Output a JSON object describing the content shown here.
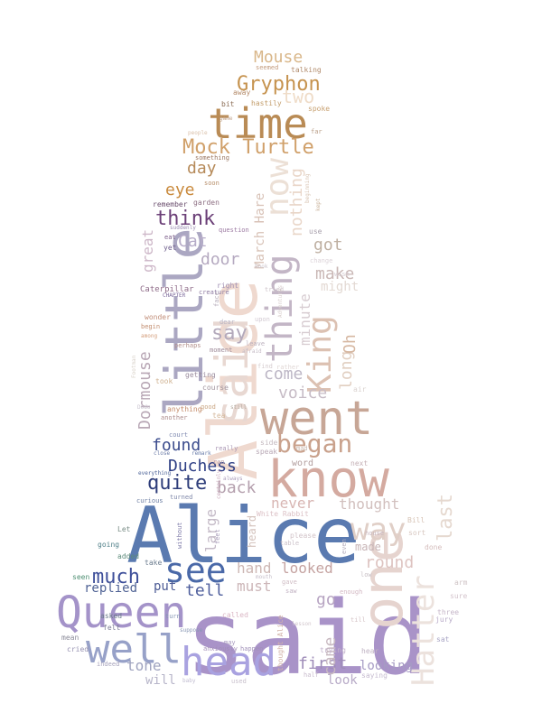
{
  "wordcloud": {
    "words": [
      {
        "text": "said",
        "color": "#a993c8"
      },
      {
        "text": "Alice",
        "color": "#5a7ab0"
      },
      {
        "text": "Alice",
        "color": "#efd9cf"
      },
      {
        "text": "little",
        "color": "#aba7c2"
      },
      {
        "text": "said",
        "color": "#e8d8d2"
      },
      {
        "text": "know",
        "color": "#d4aaa0"
      },
      {
        "text": "one",
        "color": "#e6d4cf"
      },
      {
        "text": "went",
        "color": "#c7a696"
      },
      {
        "text": "time",
        "color": "#b98b55"
      },
      {
        "text": "Queen",
        "color": "#a493c9"
      },
      {
        "text": "head",
        "color": "#a9a2e0"
      },
      {
        "text": "well",
        "color": "#97a1c8"
      },
      {
        "text": "see",
        "color": "#4a69a8"
      },
      {
        "text": "thing",
        "color": "#c3b6c6"
      },
      {
        "text": "King",
        "color": "#dcc1b2"
      },
      {
        "text": "now",
        "color": "#ece0d6"
      },
      {
        "text": "Hatter",
        "color": "#ece2dd"
      },
      {
        "text": "way",
        "color": "#e0cfc7"
      },
      {
        "text": "began",
        "color": "#c9a18c"
      },
      {
        "text": "Mock Turtle",
        "color": "#d0a06a"
      },
      {
        "text": "Gryphon",
        "color": "#c6934f"
      },
      {
        "text": "Mouse",
        "color": "#d9b78a"
      },
      {
        "text": "two",
        "color": "#efdcc8"
      },
      {
        "text": "think",
        "color": "#6b3f77"
      },
      {
        "text": "day",
        "color": "#b68a59"
      },
      {
        "text": "eye",
        "color": "#c98a3d"
      },
      {
        "text": "much",
        "color": "#3e4f9a"
      },
      {
        "text": "quite",
        "color": "#2e3d7a"
      },
      {
        "text": "found",
        "color": "#3b4c8d"
      },
      {
        "text": "Duchess",
        "color": "#2d3e84"
      },
      {
        "text": "Dormouse",
        "color": "#b9a8b6"
      },
      {
        "text": "back",
        "color": "#b5a0ae"
      },
      {
        "text": "voice",
        "color": "#c7bcc6"
      },
      {
        "text": "come",
        "color": "#bdb7c6"
      },
      {
        "text": "say",
        "color": "#b3a9bb"
      },
      {
        "text": "door",
        "color": "#b5a9c0"
      },
      {
        "text": "Cat",
        "color": "#b6acc8"
      },
      {
        "text": "great",
        "color": "#cdb7c8"
      },
      {
        "text": "nothing",
        "color": "#e9d6c8"
      },
      {
        "text": "March Hare",
        "color": "#d8c2b7"
      },
      {
        "text": "got",
        "color": "#bfb0a2"
      },
      {
        "text": "make",
        "color": "#c9b7b5"
      },
      {
        "text": "might",
        "color": "#e3d9d3"
      },
      {
        "text": "minute",
        "color": "#d8cdd2"
      },
      {
        "text": "long",
        "color": "#e1cfc1"
      },
      {
        "text": "Oh",
        "color": "#d6b7a1"
      },
      {
        "text": "last",
        "color": "#e6d9d0"
      },
      {
        "text": "first",
        "color": "#9e8cb8"
      },
      {
        "text": "tell",
        "color": "#4f5f9d"
      },
      {
        "text": "replied",
        "color": "#506395"
      },
      {
        "text": "put",
        "color": "#4d5c95"
      },
      {
        "text": "hand",
        "color": "#cdb7b4"
      },
      {
        "text": "looked",
        "color": "#c5a3a1"
      },
      {
        "text": "must",
        "color": "#ccb6b8"
      },
      {
        "text": "round",
        "color": "#ddc3c0"
      },
      {
        "text": "never",
        "color": "#d8b6b3"
      },
      {
        "text": "thought",
        "color": "#d2c0be"
      },
      {
        "text": "came",
        "color": "#c8b9c1"
      },
      {
        "text": "large",
        "color": "#c4bac7"
      },
      {
        "text": "heard",
        "color": "#d4c3bd"
      },
      {
        "text": "go",
        "color": "#b7a4c2"
      },
      {
        "text": "made",
        "color": "#c7b4b6"
      },
      {
        "text": "looking",
        "color": "#a69bc4"
      },
      {
        "text": "look",
        "color": "#b7aac7"
      },
      {
        "text": "tone",
        "color": "#9fa3bf"
      },
      {
        "text": "will",
        "color": "#b7b5c9"
      },
      {
        "text": "Caterpillar",
        "color": "#8e6b88"
      },
      {
        "text": "talking",
        "color": "#b18b6c"
      },
      {
        "text": "seemed",
        "color": "#c29a7b"
      },
      {
        "text": "hastily",
        "color": "#c39d6b"
      },
      {
        "text": "spoke",
        "color": "#c7a070"
      },
      {
        "text": "away",
        "color": "#b58c6c"
      },
      {
        "text": "bit",
        "color": "#8d6f57"
      },
      {
        "text": "something",
        "color": "#9a7660"
      },
      {
        "text": "garden",
        "color": "#8d6f83"
      },
      {
        "text": "remember",
        "color": "#6b4f6e"
      },
      {
        "text": "soon",
        "color": "#b8906c"
      },
      {
        "text": "question",
        "color": "#9c7aa2"
      },
      {
        "text": "eat",
        "color": "#7a5c88"
      },
      {
        "text": "yet",
        "color": "#6d5d8c"
      },
      {
        "text": "suddenly",
        "color": "#998ab0"
      },
      {
        "text": "right",
        "color": "#a08fb3"
      },
      {
        "text": "creature",
        "color": "#8d7aa0"
      },
      {
        "text": "CHAPTER",
        "color": "#7d6a9c"
      },
      {
        "text": "wonder",
        "color": "#c28f7a"
      },
      {
        "text": "begin",
        "color": "#c28d6f"
      },
      {
        "text": "among",
        "color": "#d39c79"
      },
      {
        "text": "perhaps",
        "color": "#b28f8b"
      },
      {
        "text": "moment",
        "color": "#a08d9b"
      },
      {
        "text": "getting",
        "color": "#9a8c9e"
      },
      {
        "text": "course",
        "color": "#a1939d"
      },
      {
        "text": "took",
        "color": "#cfb190"
      },
      {
        "text": "good",
        "color": "#c9a582"
      },
      {
        "text": "tea",
        "color": "#d4b79a"
      },
      {
        "text": "anything",
        "color": "#c58e6d"
      },
      {
        "text": "another",
        "color": "#ae8e8e"
      },
      {
        "text": "court",
        "color": "#7f8ab0"
      },
      {
        "text": "close",
        "color": "#6a7aa6"
      },
      {
        "text": "remark",
        "color": "#6c7fab"
      },
      {
        "text": "everything",
        "color": "#4d6398"
      },
      {
        "text": "curious",
        "color": "#6d7ea3"
      },
      {
        "text": "turned",
        "color": "#7d86a8"
      },
      {
        "text": "Let",
        "color": "#7a8d87"
      },
      {
        "text": "going",
        "color": "#4f7f88"
      },
      {
        "text": "added",
        "color": "#5c8a7a"
      },
      {
        "text": "seen",
        "color": "#4e8f73"
      },
      {
        "text": "asked",
        "color": "#6a7a8a"
      },
      {
        "text": "mean",
        "color": "#8b8b99"
      },
      {
        "text": "cried",
        "color": "#9590b0"
      },
      {
        "text": "indeed",
        "color": "#a6a2bb"
      },
      {
        "text": "felt",
        "color": "#7d7d95"
      },
      {
        "text": "take",
        "color": "#6c7d8f"
      },
      {
        "text": "turn",
        "color": "#8797b5"
      },
      {
        "text": "suppose",
        "color": "#8796b3"
      },
      {
        "text": "anxiously",
        "color": "#a28eb7"
      },
      {
        "text": "happen",
        "color": "#a191b9"
      },
      {
        "text": "may",
        "color": "#a89abf"
      },
      {
        "text": "baby",
        "color": "#c2bdd1"
      },
      {
        "text": "used",
        "color": "#c8c0cc"
      },
      {
        "text": "half",
        "color": "#c9bccd"
      },
      {
        "text": "trying",
        "color": "#c2b2cc"
      },
      {
        "text": "hear",
        "color": "#bfb2c2"
      },
      {
        "text": "saying",
        "color": "#c6bcd0"
      },
      {
        "text": "sat",
        "color": "#a8a4c4"
      },
      {
        "text": "jury",
        "color": "#b8aac8"
      },
      {
        "text": "three",
        "color": "#c6b7c9"
      },
      {
        "text": "sure",
        "color": "#d4c4cc"
      },
      {
        "text": "done",
        "color": "#d4bcbb"
      },
      {
        "text": "arm",
        "color": "#cfc3c5"
      },
      {
        "text": "sort",
        "color": "#d8c8c0"
      },
      {
        "text": "Bill",
        "color": "#d7c4b6"
      },
      {
        "text": "White Rabbit",
        "color": "#dcc1c6"
      },
      {
        "text": "please",
        "color": "#d2c3c8"
      },
      {
        "text": "table",
        "color": "#cbc0c8"
      },
      {
        "text": "called",
        "color": "#dab6c4"
      },
      {
        "text": "gave",
        "color": "#cfbcc4"
      },
      {
        "text": "saw",
        "color": "#c3b4c4"
      },
      {
        "text": "low",
        "color": "#c8c0c6"
      },
      {
        "text": "enough",
        "color": "#d3b8c3"
      },
      {
        "text": "till",
        "color": "#d5c3c6"
      },
      {
        "text": "next",
        "color": "#c5b0b6"
      },
      {
        "text": "word",
        "color": "#b39f9f"
      },
      {
        "text": "mad",
        "color": "#c9b9b1"
      },
      {
        "text": "speak",
        "color": "#b9a9b6"
      },
      {
        "text": "side",
        "color": "#c4b9bf"
      },
      {
        "text": "air",
        "color": "#dad2cf"
      },
      {
        "text": "find",
        "color": "#d6cdcf"
      },
      {
        "text": "rather",
        "color": "#e0d7d5"
      },
      {
        "text": "afraid",
        "color": "#c6bcc6"
      },
      {
        "text": "leave",
        "color": "#bcb1be"
      },
      {
        "text": "dear",
        "color": "#b8b2c1"
      },
      {
        "text": "upon",
        "color": "#d2cad2"
      },
      {
        "text": "tried",
        "color": "#cdc3c9"
      },
      {
        "text": "book",
        "color": "#cac3ca"
      },
      {
        "text": "wish",
        "color": "#d4cad1"
      },
      {
        "text": "change",
        "color": "#dcd3d8"
      },
      {
        "text": "use",
        "color": "#a8a0ac"
      },
      {
        "text": "face",
        "color": "#b9b0bd"
      },
      {
        "text": "really",
        "color": "#a996b3"
      },
      {
        "text": "ran",
        "color": "#b99fa9"
      },
      {
        "text": "always",
        "color": "#a99cba"
      },
      {
        "text": "certainly",
        "color": "#c7a6b8"
      },
      {
        "text": "without",
        "color": "#7d7aa8"
      },
      {
        "text": "feet",
        "color": "#a79bb8"
      },
      {
        "text": "even",
        "color": "#b7b0bf"
      },
      {
        "text": "house",
        "color": "#c7b5bd"
      },
      {
        "text": "still",
        "color": "#b2a99e"
      },
      {
        "text": "Footman",
        "color": "#d9d2c9"
      },
      {
        "text": "Dodo",
        "color": "#c9c3cf"
      },
      {
        "text": "game",
        "color": "#c2a58f"
      },
      {
        "text": "people",
        "color": "#d9bfa8"
      },
      {
        "text": "far",
        "color": "#b99d86"
      },
      {
        "text": "kept",
        "color": "#c9b299"
      },
      {
        "text": "beginning",
        "color": "#d8c4b3"
      },
      {
        "text": "Adventures",
        "color": "#d9cfcd"
      },
      {
        "text": "mouth",
        "color": "#c6bfca"
      },
      {
        "text": "lesson",
        "color": "#d2c6cd"
      },
      {
        "text": "thought Alice",
        "color": "#d2b3a8"
      }
    ]
  }
}
